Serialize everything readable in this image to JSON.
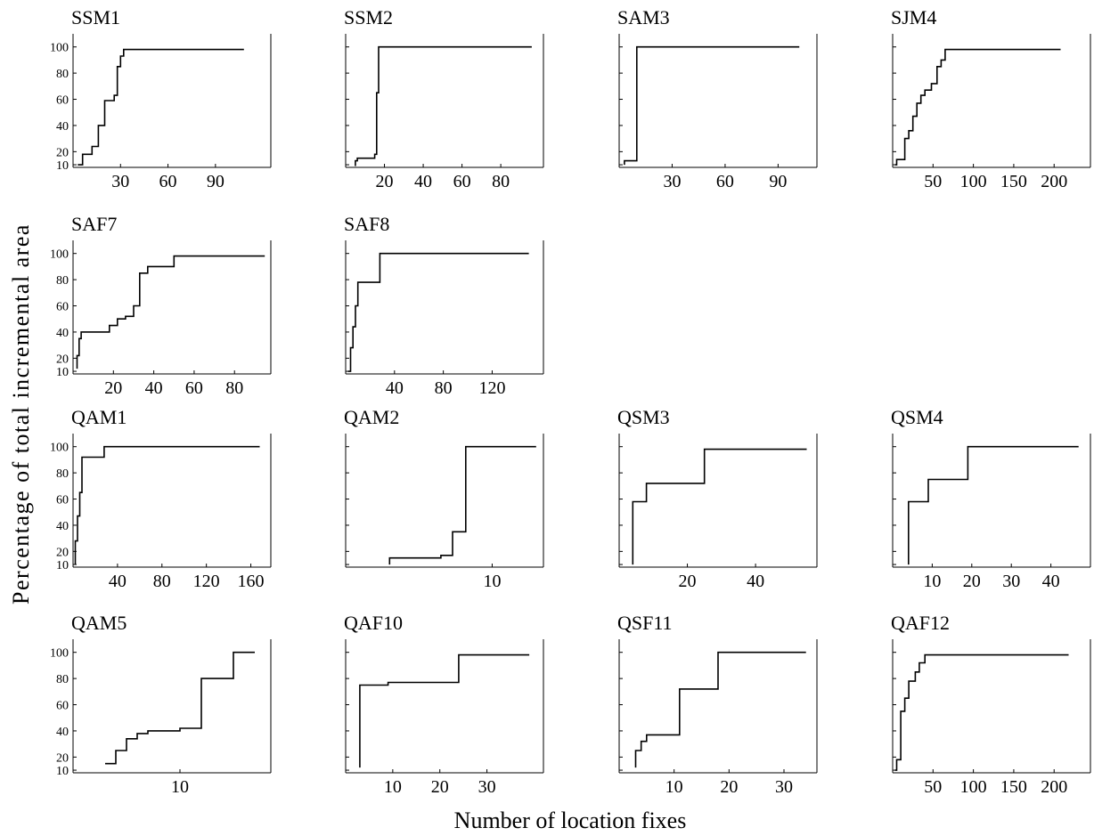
{
  "xlabel": "Number of location fixes",
  "ylabel": "Percentage of total incremental area",
  "yticks": [
    10,
    20,
    40,
    60,
    80,
    100
  ],
  "chart_data": [
    {
      "title": "SSM1",
      "type": "line",
      "xlim": [
        0,
        125
      ],
      "xticks": [
        30,
        60,
        90
      ],
      "ylim": [
        8,
        110
      ],
      "x": [
        3,
        6,
        6,
        12,
        12,
        16,
        16,
        20,
        20,
        26,
        26,
        28,
        28,
        30,
        30,
        32,
        32,
        34,
        34,
        108
      ],
      "y": [
        10,
        10,
        18,
        18,
        24,
        24,
        40,
        40,
        59,
        59,
        63,
        63,
        85,
        85,
        93,
        93,
        98,
        98,
        98,
        98
      ]
    },
    {
      "title": "SSM2",
      "type": "line",
      "xlim": [
        0,
        102
      ],
      "xticks": [
        20,
        40,
        60,
        80
      ],
      "ylim": [
        8,
        110
      ],
      "x": [
        5,
        5,
        6,
        6,
        15,
        15,
        16,
        16,
        17,
        17,
        96
      ],
      "y": [
        9,
        13,
        13,
        15,
        15,
        18,
        18,
        65,
        65,
        100,
        100
      ]
    },
    {
      "title": "SAM3",
      "type": "line",
      "xlim": [
        0,
        112
      ],
      "xticks": [
        30,
        60,
        90
      ],
      "ylim": [
        8,
        110
      ],
      "x": [
        3,
        3,
        10,
        10,
        102
      ],
      "y": [
        10,
        13,
        13,
        100,
        100
      ]
    },
    {
      "title": "SJM4",
      "type": "line",
      "xlim": [
        0,
        245
      ],
      "xticks": [
        50,
        100,
        150,
        200
      ],
      "ylim": [
        8,
        110
      ],
      "x": [
        3,
        5,
        5,
        15,
        15,
        20,
        20,
        25,
        25,
        30,
        30,
        35,
        35,
        40,
        40,
        48,
        48,
        55,
        55,
        60,
        60,
        65,
        65,
        208
      ],
      "y": [
        10,
        10,
        14,
        14,
        30,
        30,
        36,
        36,
        47,
        47,
        57,
        57,
        63,
        63,
        67,
        67,
        72,
        72,
        85,
        85,
        90,
        90,
        98,
        98
      ]
    },
    {
      "title": "SAF7",
      "type": "line",
      "xlim": [
        0,
        98
      ],
      "xticks": [
        20,
        40,
        60,
        80
      ],
      "ylim": [
        8,
        110
      ],
      "x": [
        2,
        2,
        3,
        3,
        4,
        4,
        18,
        18,
        22,
        22,
        26,
        26,
        30,
        30,
        33,
        33,
        37,
        37,
        50,
        50,
        95
      ],
      "y": [
        12,
        22,
        22,
        35,
        35,
        40,
        40,
        45,
        45,
        50,
        50,
        52,
        52,
        60,
        60,
        85,
        85,
        90,
        90,
        98,
        98
      ]
    },
    {
      "title": "SAF8",
      "type": "line",
      "xlim": [
        0,
        162
      ],
      "xticks": [
        40,
        80,
        120
      ],
      "ylim": [
        8,
        110
      ],
      "x": [
        2,
        4,
        4,
        6,
        6,
        8,
        8,
        10,
        10,
        28,
        28,
        150
      ],
      "y": [
        10,
        10,
        28,
        28,
        44,
        44,
        60,
        60,
        78,
        78,
        100,
        100
      ]
    },
    {
      "title": "QAM1",
      "type": "line",
      "xlim": [
        0,
        178
      ],
      "xticks": [
        40,
        80,
        120,
        160
      ],
      "ylim": [
        8,
        110
      ],
      "x": [
        2,
        2,
        4,
        4,
        6,
        6,
        8,
        8,
        28,
        28,
        168
      ],
      "y": [
        10,
        28,
        28,
        47,
        47,
        65,
        65,
        92,
        92,
        100,
        100
      ]
    },
    {
      "title": "QAM2",
      "type": "line",
      "xlim": [
        0,
        13.5
      ],
      "xticks": [
        10
      ],
      "ylim": [
        8,
        110
      ],
      "x": [
        3,
        3,
        6.5,
        6.5,
        7.3,
        7.3,
        8.2,
        8.2,
        13
      ],
      "y": [
        10,
        15,
        15,
        17,
        17,
        35,
        35,
        100,
        100
      ]
    },
    {
      "title": "QSM3",
      "type": "line",
      "xlim": [
        0,
        58
      ],
      "xticks": [
        20,
        40
      ],
      "ylim": [
        8,
        110
      ],
      "x": [
        4,
        4,
        8,
        8,
        25,
        25,
        55
      ],
      "y": [
        10,
        58,
        58,
        72,
        72,
        98,
        98
      ]
    },
    {
      "title": "QSM4",
      "type": "line",
      "xlim": [
        0,
        50
      ],
      "xticks": [
        10,
        20,
        30,
        40
      ],
      "ylim": [
        8,
        110
      ],
      "x": [
        4,
        4,
        9,
        9,
        19,
        19,
        47
      ],
      "y": [
        10,
        58,
        58,
        75,
        75,
        100,
        100
      ]
    },
    {
      "title": "QAM5",
      "type": "line",
      "xlim": [
        0,
        18.5
      ],
      "xticks": [
        10
      ],
      "ylim": [
        8,
        110
      ],
      "x": [
        3,
        4,
        4,
        5,
        5,
        6,
        6,
        7,
        7,
        10,
        10,
        12,
        12,
        15,
        15,
        17
      ],
      "y": [
        15,
        15,
        25,
        25,
        34,
        34,
        38,
        38,
        40,
        40,
        42,
        42,
        80,
        80,
        100,
        100
      ]
    },
    {
      "title": "QAF10",
      "type": "line",
      "xlim": [
        0,
        42
      ],
      "xticks": [
        10,
        20,
        30
      ],
      "ylim": [
        8,
        110
      ],
      "x": [
        3,
        3,
        9,
        9,
        24,
        24,
        39
      ],
      "y": [
        12,
        75,
        75,
        77,
        77,
        98,
        98
      ]
    },
    {
      "title": "QSF11",
      "type": "line",
      "xlim": [
        0,
        36
      ],
      "xticks": [
        10,
        20,
        30
      ],
      "ylim": [
        8,
        110
      ],
      "x": [
        3,
        3,
        4,
        4,
        5,
        5,
        11,
        11,
        18,
        18,
        34
      ],
      "y": [
        12,
        25,
        25,
        32,
        32,
        37,
        37,
        72,
        72,
        100,
        100
      ]
    },
    {
      "title": "QAF12",
      "type": "line",
      "xlim": [
        0,
        245
      ],
      "xticks": [
        50,
        100,
        150,
        200
      ],
      "ylim": [
        8,
        110
      ],
      "x": [
        3,
        5,
        5,
        10,
        10,
        15,
        15,
        20,
        20,
        28,
        28,
        33,
        33,
        40,
        40,
        45,
        45,
        218
      ],
      "y": [
        10,
        10,
        18,
        18,
        55,
        55,
        65,
        65,
        78,
        78,
        85,
        85,
        92,
        92,
        98,
        98,
        98,
        98
      ]
    }
  ]
}
